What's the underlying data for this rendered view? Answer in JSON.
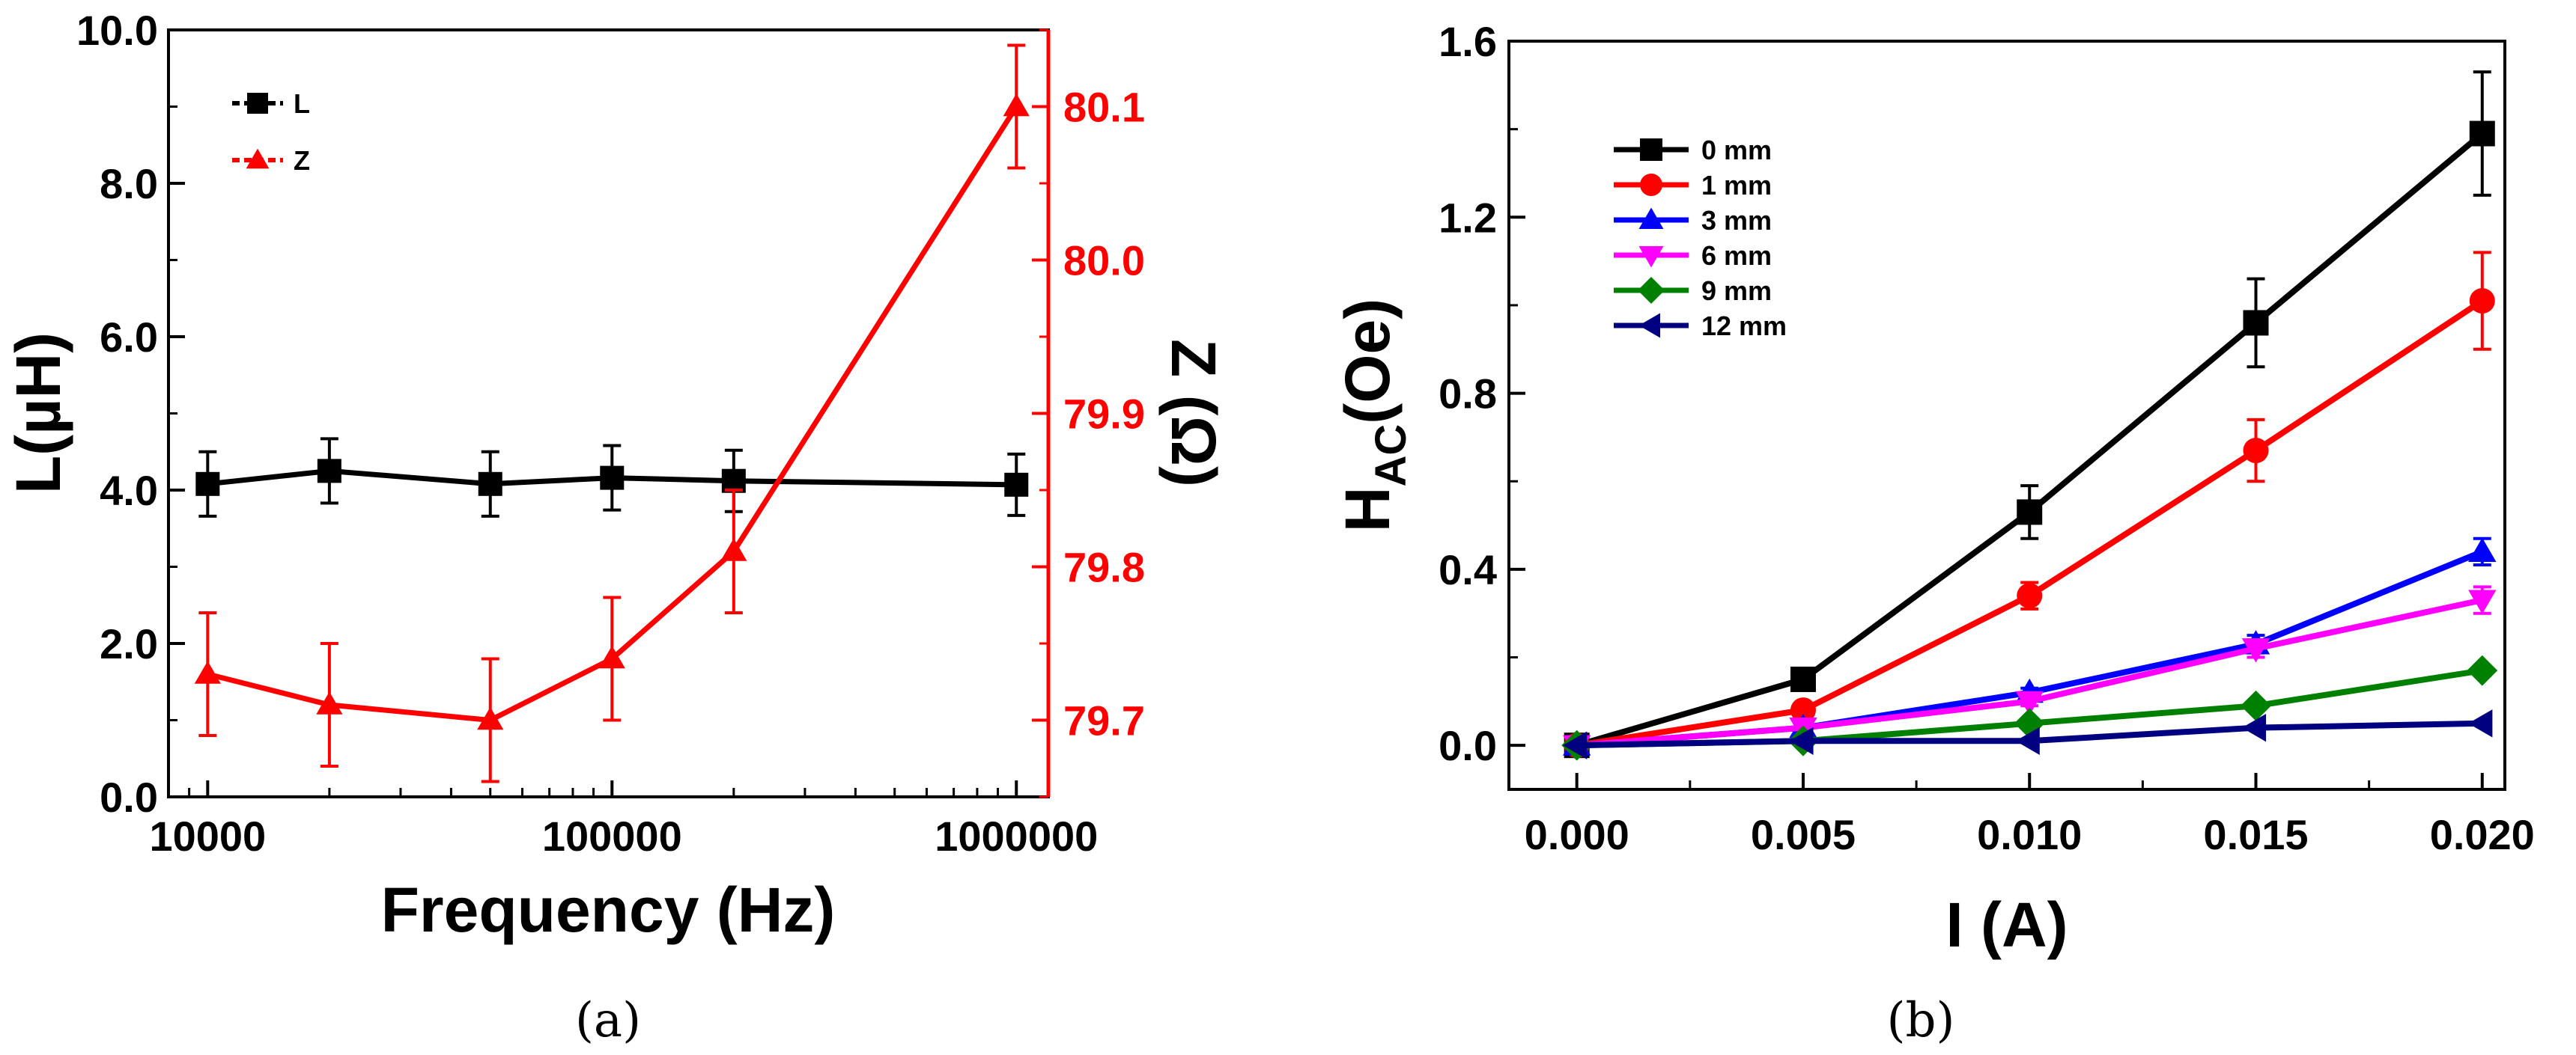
{
  "chart_data": [
    {
      "id": "a",
      "caption": "(a)",
      "type": "line",
      "x_scale": "log",
      "xlabel": "Frequency (Hz)",
      "xlim": [
        8000,
        1200000
      ],
      "x_ticks": [
        10000,
        100000,
        1000000
      ],
      "x_tick_labels": [
        "10000",
        "100000",
        "1000000"
      ],
      "x": [
        10000,
        20000,
        50000,
        100000,
        200000,
        1000000
      ],
      "left_axis": {
        "label": "L(µH)",
        "ylim": [
          0,
          10
        ],
        "ticks": [
          0,
          2,
          4,
          6,
          8,
          10
        ],
        "tick_labels": [
          "0.0",
          "2.0",
          "4.0",
          "6.0",
          "8.0",
          "10.0"
        ]
      },
      "right_axis": {
        "label": "Z (Ω)",
        "color": "#ff0000",
        "ylim": [
          79.65,
          80.15
        ],
        "ticks": [
          79.7,
          79.8,
          79.9,
          80.0,
          80.1
        ],
        "tick_labels": [
          "79.7",
          "79.8",
          "79.9",
          "80.0",
          "80.1"
        ]
      },
      "series": [
        {
          "name": "L",
          "axis": "left",
          "color": "#000000",
          "marker": "square",
          "values": [
            4.08,
            4.25,
            4.08,
            4.16,
            4.12,
            4.07
          ],
          "errors": [
            0.42,
            0.42,
            0.42,
            0.42,
            0.4,
            0.4
          ]
        },
        {
          "name": "Z",
          "axis": "right",
          "color": "#ff0000",
          "marker": "triangle-up",
          "values": [
            79.73,
            79.71,
            79.7,
            79.74,
            79.81,
            80.1
          ],
          "errors": [
            0.04,
            0.04,
            0.04,
            0.04,
            0.04,
            0.04
          ]
        }
      ],
      "legend": "top-left"
    },
    {
      "id": "b",
      "caption": "(b)",
      "type": "line",
      "xlabel": "I (A)",
      "ylabel_main": "H",
      "ylabel_sub": "AC",
      "ylabel_tail": "(Oe)",
      "xlim": [
        -0.0015,
        0.0205
      ],
      "ylim": [
        -0.1,
        1.6
      ],
      "x_ticks": [
        0.0,
        0.005,
        0.01,
        0.015,
        0.02
      ],
      "x_tick_labels": [
        "0.000",
        "0.005",
        "0.010",
        "0.015",
        "0.020"
      ],
      "y_ticks": [
        0.0,
        0.4,
        0.8,
        1.2,
        1.6
      ],
      "y_tick_labels": [
        "0.0",
        "0.4",
        "0.8",
        "1.2",
        "1.6"
      ],
      "x": [
        0.0,
        0.005,
        0.01,
        0.015,
        0.02
      ],
      "series": [
        {
          "name": "0 mm",
          "color": "#000000",
          "marker": "square",
          "values": [
            0.0,
            0.15,
            0.53,
            0.96,
            1.39
          ],
          "errors": [
            0,
            0.02,
            0.06,
            0.1,
            0.14
          ]
        },
        {
          "name": "1 mm",
          "color": "#ff0000",
          "marker": "circle",
          "values": [
            0.0,
            0.08,
            0.34,
            0.67,
            1.01
          ],
          "errors": [
            0,
            0.01,
            0.03,
            0.07,
            0.11
          ]
        },
        {
          "name": "3 mm",
          "color": "#0000ff",
          "marker": "triangle-up",
          "values": [
            0.0,
            0.04,
            0.12,
            0.23,
            0.44
          ],
          "errors": [
            0,
            0,
            0.01,
            0.02,
            0.03
          ]
        },
        {
          "name": "6 mm",
          "color": "#ff00ff",
          "marker": "triangle-down",
          "values": [
            0.0,
            0.04,
            0.1,
            0.22,
            0.33
          ],
          "errors": [
            0,
            0,
            0.01,
            0.02,
            0.03
          ]
        },
        {
          "name": "9 mm",
          "color": "#008000",
          "marker": "diamond",
          "values": [
            0.0,
            0.01,
            0.05,
            0.09,
            0.17
          ],
          "errors": [
            0,
            0,
            0,
            0.01,
            0.01
          ]
        },
        {
          "name": "12 mm",
          "color": "#000080",
          "marker": "triangle-left",
          "values": [
            0.0,
            0.01,
            0.01,
            0.04,
            0.05
          ],
          "errors": [
            0,
            0,
            0,
            0,
            0
          ]
        }
      ],
      "legend": "top-left"
    }
  ]
}
